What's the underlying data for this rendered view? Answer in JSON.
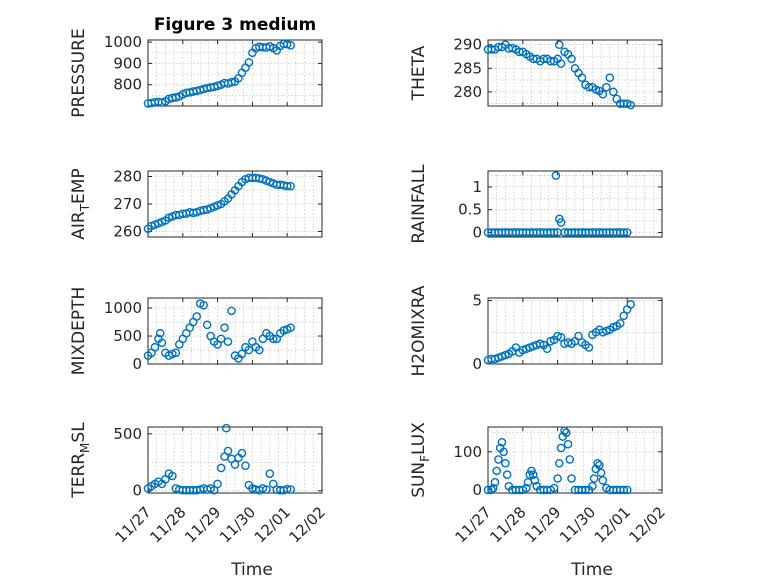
{
  "figure": {
    "title": "Figure 3 medium",
    "marker_color": "#0072BD",
    "x_tick_labels": [
      "11/27",
      "11/28",
      "11/29",
      "11/30",
      "12/01",
      "12/02"
    ],
    "x_label": "Time"
  },
  "chart_data": [
    {
      "type": "scatter",
      "title": "Figure 3 medium",
      "ylabel": "PRESSURE",
      "xlabel": "",
      "x_ticks": [
        0,
        1,
        2,
        3,
        4,
        5
      ],
      "xlim": [
        0,
        5
      ],
      "ylim": [
        700,
        1010
      ],
      "y_ticks": [
        800,
        900,
        1000
      ],
      "y_tick_labels": [
        "800",
        "900",
        "1000"
      ],
      "grid": true,
      "x": [
        0.0,
        0.1,
        0.2,
        0.3,
        0.4,
        0.5,
        0.6,
        0.7,
        0.8,
        0.9,
        1.0,
        1.1,
        1.2,
        1.3,
        1.4,
        1.5,
        1.6,
        1.7,
        1.8,
        1.9,
        2.0,
        2.1,
        2.2,
        2.3,
        2.4,
        2.5,
        2.6,
        2.7,
        2.8,
        2.9,
        3.0,
        3.1,
        3.2,
        3.3,
        3.4,
        3.5,
        3.6,
        3.7,
        3.8,
        3.9,
        4.0,
        4.1
      ],
      "y": [
        712,
        714,
        718,
        719,
        716,
        722,
        733,
        738,
        740,
        745,
        755,
        762,
        764,
        768,
        771,
        775,
        780,
        784,
        787,
        790,
        795,
        800,
        808,
        806,
        812,
        815,
        830,
        856,
        880,
        905,
        950,
        972,
        978,
        976,
        975,
        980,
        972,
        961,
        982,
        992,
        990,
        985
      ]
    },
    {
      "type": "scatter",
      "title": "",
      "ylabel": "THETA",
      "xlabel": "",
      "x_ticks": [
        0,
        1,
        2,
        3,
        4,
        5
      ],
      "xlim": [
        0,
        5
      ],
      "ylim": [
        277,
        291
      ],
      "y_ticks": [
        280,
        285,
        290
      ],
      "y_tick_labels": [
        "280",
        "285",
        "290"
      ],
      "grid": true,
      "x": [
        0.0,
        0.1,
        0.2,
        0.3,
        0.4,
        0.5,
        0.6,
        0.7,
        0.8,
        0.9,
        1.0,
        1.1,
        1.2,
        1.3,
        1.4,
        1.5,
        1.6,
        1.7,
        1.8,
        1.9,
        2.0,
        2.05,
        2.1,
        2.2,
        2.3,
        2.4,
        2.5,
        2.6,
        2.7,
        2.8,
        2.9,
        3.0,
        3.1,
        3.2,
        3.3,
        3.4,
        3.5,
        3.6,
        3.7,
        3.8,
        3.9,
        4.0,
        4.1
      ],
      "y": [
        289,
        289,
        289,
        289.5,
        289.5,
        290,
        289.2,
        289.3,
        289,
        288.5,
        288.5,
        288,
        287.5,
        287,
        287,
        286.5,
        287,
        287,
        286.5,
        286.5,
        287,
        290,
        286,
        288.5,
        288,
        287,
        285,
        284,
        283,
        281.5,
        281,
        281,
        280.5,
        280.2,
        279.5,
        281,
        283,
        280,
        278.5,
        277.5,
        277.5,
        277.5,
        277.2
      ]
    },
    {
      "type": "scatter",
      "title": "",
      "ylabel": "AIR_TEMP",
      "xlabel": "",
      "x_ticks": [
        0,
        1,
        2,
        3,
        4,
        5
      ],
      "xlim": [
        0,
        5
      ],
      "ylim": [
        258,
        282
      ],
      "y_ticks": [
        260,
        270,
        280
      ],
      "y_tick_labels": [
        "260",
        "270",
        "280"
      ],
      "grid": true,
      "x": [
        0.0,
        0.1,
        0.2,
        0.3,
        0.4,
        0.5,
        0.6,
        0.7,
        0.8,
        0.9,
        1.0,
        1.1,
        1.2,
        1.3,
        1.4,
        1.5,
        1.6,
        1.7,
        1.8,
        1.9,
        2.0,
        2.1,
        2.2,
        2.3,
        2.4,
        2.5,
        2.6,
        2.7,
        2.8,
        2.9,
        3.0,
        3.1,
        3.2,
        3.3,
        3.4,
        3.5,
        3.6,
        3.7,
        3.8,
        3.9,
        4.0,
        4.1
      ],
      "y": [
        261,
        262,
        262.5,
        263,
        263.5,
        264,
        265,
        265.5,
        266,
        266,
        266.5,
        266.5,
        267,
        266.8,
        267,
        267.5,
        267.8,
        268,
        268.5,
        269,
        269.5,
        270,
        271,
        272,
        273.5,
        275,
        276.5,
        278,
        279,
        279.5,
        279.5,
        279.5,
        279.3,
        279,
        278.5,
        278,
        277.5,
        277,
        277,
        276.8,
        276.5,
        276.5
      ]
    },
    {
      "type": "scatter",
      "title": "",
      "ylabel": "RAINFALL",
      "xlabel": "",
      "x_ticks": [
        0,
        1,
        2,
        3,
        4,
        5
      ],
      "xlim": [
        0,
        5
      ],
      "ylim": [
        -0.1,
        1.35
      ],
      "y_ticks": [
        0,
        0.5,
        1
      ],
      "y_tick_labels": [
        "0",
        "0.5",
        "1"
      ],
      "grid": true,
      "x": [
        0.0,
        0.1,
        0.2,
        0.3,
        0.4,
        0.5,
        0.6,
        0.7,
        0.8,
        0.9,
        1.0,
        1.1,
        1.2,
        1.3,
        1.4,
        1.5,
        1.6,
        1.7,
        1.8,
        1.9,
        1.95,
        2.0,
        2.05,
        2.1,
        2.2,
        2.3,
        2.4,
        2.5,
        2.6,
        2.7,
        2.8,
        2.9,
        3.0,
        3.1,
        3.2,
        3.3,
        3.4,
        3.5,
        3.6,
        3.7,
        3.8,
        3.9,
        4.0
      ],
      "y": [
        0,
        0,
        0,
        0,
        0,
        0,
        0,
        0,
        0,
        0,
        0,
        0,
        0,
        0,
        0,
        0,
        0,
        0,
        0,
        0,
        1.25,
        0,
        0.3,
        0.22,
        0,
        0,
        0,
        0,
        0,
        0,
        0,
        0,
        0,
        0,
        0,
        0,
        0,
        0,
        0,
        0,
        0,
        0,
        0
      ]
    },
    {
      "type": "scatter",
      "title": "",
      "ylabel": "MIXDEPTH",
      "xlabel": "",
      "x_ticks": [
        0,
        1,
        2,
        3,
        4,
        5
      ],
      "xlim": [
        0,
        5
      ],
      "ylim": [
        0,
        1180
      ],
      "y_ticks": [
        0,
        500,
        1000
      ],
      "y_tick_labels": [
        "0",
        "500",
        "1000"
      ],
      "grid": true,
      "x": [
        0.0,
        0.1,
        0.2,
        0.3,
        0.35,
        0.4,
        0.5,
        0.6,
        0.7,
        0.8,
        0.9,
        1.0,
        1.1,
        1.2,
        1.3,
        1.4,
        1.5,
        1.6,
        1.7,
        1.8,
        1.9,
        2.0,
        2.1,
        2.2,
        2.3,
        2.4,
        2.5,
        2.6,
        2.7,
        2.8,
        2.9,
        3.0,
        3.1,
        3.2,
        3.3,
        3.4,
        3.5,
        3.6,
        3.7,
        3.8,
        3.9,
        4.0,
        4.1
      ],
      "y": [
        150,
        200,
        300,
        450,
        550,
        380,
        200,
        150,
        180,
        200,
        350,
        450,
        550,
        650,
        750,
        850,
        1080,
        1050,
        700,
        500,
        400,
        350,
        450,
        650,
        400,
        950,
        150,
        100,
        180,
        300,
        250,
        400,
        300,
        250,
        450,
        550,
        500,
        450,
        450,
        550,
        600,
        620,
        650
      ]
    },
    {
      "type": "scatter",
      "title": "",
      "ylabel": "H2OMIXRA",
      "xlabel": "",
      "x_ticks": [
        0,
        1,
        2,
        3,
        4,
        5
      ],
      "xlim": [
        0,
        5
      ],
      "ylim": [
        0,
        5.2
      ],
      "y_ticks": [
        0,
        5
      ],
      "y_tick_labels": [
        "0",
        "5"
      ],
      "grid": true,
      "x": [
        0.0,
        0.1,
        0.2,
        0.3,
        0.4,
        0.5,
        0.6,
        0.7,
        0.8,
        0.9,
        1.0,
        1.1,
        1.2,
        1.3,
        1.4,
        1.5,
        1.6,
        1.7,
        1.8,
        1.9,
        2.0,
        2.1,
        2.2,
        2.3,
        2.4,
        2.5,
        2.6,
        2.7,
        2.8,
        2.9,
        3.0,
        3.1,
        3.2,
        3.3,
        3.4,
        3.5,
        3.6,
        3.7,
        3.8,
        3.9,
        4.0,
        4.1
      ],
      "y": [
        0.3,
        0.4,
        0.4,
        0.5,
        0.6,
        0.7,
        0.8,
        1.0,
        1.3,
        0.9,
        1.1,
        1.2,
        1.3,
        1.4,
        1.5,
        1.6,
        1.5,
        1.2,
        1.8,
        1.9,
        2.2,
        2.1,
        1.6,
        1.7,
        1.6,
        1.8,
        2.2,
        1.7,
        1.5,
        1.3,
        2.3,
        2.5,
        2.7,
        2.5,
        2.6,
        2.7,
        2.9,
        3.0,
        3.2,
        3.8,
        4.3,
        4.7
      ]
    },
    {
      "type": "scatter",
      "title": "",
      "ylabel": "TERR_MSL",
      "xlabel": "Time",
      "x_ticks": [
        0,
        1,
        2,
        3,
        4,
        5
      ],
      "x_tick_labels": [
        "11/27",
        "11/28",
        "11/29",
        "11/30",
        "12/01",
        "12/02"
      ],
      "xlim": [
        0,
        5
      ],
      "ylim": [
        -20,
        560
      ],
      "y_ticks": [
        0,
        500
      ],
      "y_tick_labels": [
        "0",
        "500"
      ],
      "grid": true,
      "x": [
        0.0,
        0.1,
        0.2,
        0.3,
        0.4,
        0.5,
        0.6,
        0.7,
        0.8,
        0.9,
        1.0,
        1.1,
        1.2,
        1.3,
        1.4,
        1.5,
        1.6,
        1.7,
        1.8,
        1.9,
        2.0,
        2.1,
        2.2,
        2.25,
        2.3,
        2.4,
        2.5,
        2.6,
        2.7,
        2.8,
        2.9,
        3.0,
        3.1,
        3.2,
        3.3,
        3.4,
        3.5,
        3.6,
        3.7,
        3.8,
        3.9,
        4.0,
        4.1
      ],
      "y": [
        20,
        40,
        60,
        80,
        60,
        100,
        150,
        130,
        20,
        10,
        5,
        5,
        5,
        5,
        5,
        10,
        20,
        10,
        20,
        5,
        60,
        200,
        300,
        550,
        350,
        280,
        230,
        290,
        330,
        220,
        50,
        20,
        10,
        5,
        20,
        10,
        150,
        60,
        10,
        5,
        5,
        15,
        10
      ]
    },
    {
      "type": "scatter",
      "title": "",
      "ylabel": "SUN_FLUX",
      "xlabel": "Time",
      "x_ticks": [
        0,
        1,
        2,
        3,
        4,
        5
      ],
      "x_tick_labels": [
        "11/27",
        "11/28",
        "11/29",
        "11/30",
        "12/01",
        "12/02"
      ],
      "xlim": [
        0,
        5
      ],
      "ylim": [
        -8,
        165
      ],
      "y_ticks": [
        0,
        100
      ],
      "y_tick_labels": [
        "0",
        "100"
      ],
      "grid": true,
      "x": [
        0.0,
        0.1,
        0.15,
        0.2,
        0.25,
        0.3,
        0.35,
        0.4,
        0.45,
        0.5,
        0.55,
        0.6,
        0.7,
        0.8,
        0.9,
        1.0,
        1.1,
        1.15,
        1.2,
        1.25,
        1.3,
        1.35,
        1.4,
        1.5,
        1.6,
        1.7,
        1.8,
        1.9,
        2.0,
        2.05,
        2.1,
        2.15,
        2.2,
        2.25,
        2.3,
        2.35,
        2.4,
        2.5,
        2.6,
        2.7,
        2.8,
        2.9,
        3.0,
        3.05,
        3.1,
        3.15,
        3.2,
        3.25,
        3.3,
        3.4,
        3.5,
        3.6,
        3.7,
        3.8,
        3.9,
        4.0
      ],
      "y": [
        0,
        0,
        5,
        20,
        50,
        80,
        110,
        125,
        100,
        70,
        40,
        10,
        0,
        0,
        0,
        0,
        5,
        20,
        40,
        50,
        40,
        25,
        10,
        0,
        0,
        0,
        0,
        5,
        30,
        70,
        110,
        140,
        155,
        150,
        120,
        80,
        30,
        0,
        0,
        0,
        0,
        0,
        10,
        30,
        55,
        70,
        65,
        45,
        25,
        5,
        0,
        0,
        0,
        0,
        0,
        0
      ]
    }
  ]
}
